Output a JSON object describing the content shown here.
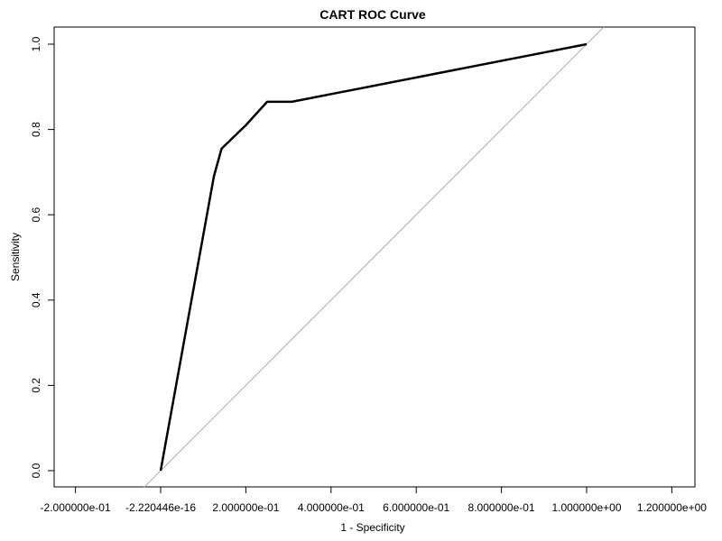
{
  "chart_data": {
    "type": "line",
    "title": "CART ROC Curve",
    "xlabel": "1 - Specificity",
    "ylabel": "Sensitivity",
    "xlim": [
      -0.22,
      1.27
    ],
    "ylim": [
      -0.035,
      1.035
    ],
    "x_tick_values": [
      -0.2,
      -2.220446e-16,
      0.2,
      0.4,
      0.6,
      0.8,
      1.0,
      1.2
    ],
    "x_tick_labels": [
      "-2.000000e-01",
      "-2.220446e-16",
      "2.000000e-01",
      "4.000000e-01",
      "6.000000e-01",
      "8.000000e-01",
      "1.000000e+00",
      "1.200000e+00"
    ],
    "y_tick_values": [
      0.0,
      0.2,
      0.4,
      0.6,
      0.8,
      1.0
    ],
    "y_tick_labels": [
      "0.0",
      "0.2",
      "0.4",
      "0.6",
      "0.8",
      "1.0"
    ],
    "series": [
      {
        "x": [
          0.0,
          0.125,
          0.143,
          0.2,
          0.25,
          0.308,
          1.0
        ],
        "y": [
          0.0,
          0.69,
          0.755,
          0.81,
          0.865,
          0.865,
          1.0
        ],
        "color": "#000000"
      }
    ],
    "reference_line": {
      "from": [
        -0.04,
        -0.04
      ],
      "to": [
        1.04,
        1.04
      ],
      "color": "#aaaaaa"
    },
    "grid": false,
    "legend": "none"
  }
}
